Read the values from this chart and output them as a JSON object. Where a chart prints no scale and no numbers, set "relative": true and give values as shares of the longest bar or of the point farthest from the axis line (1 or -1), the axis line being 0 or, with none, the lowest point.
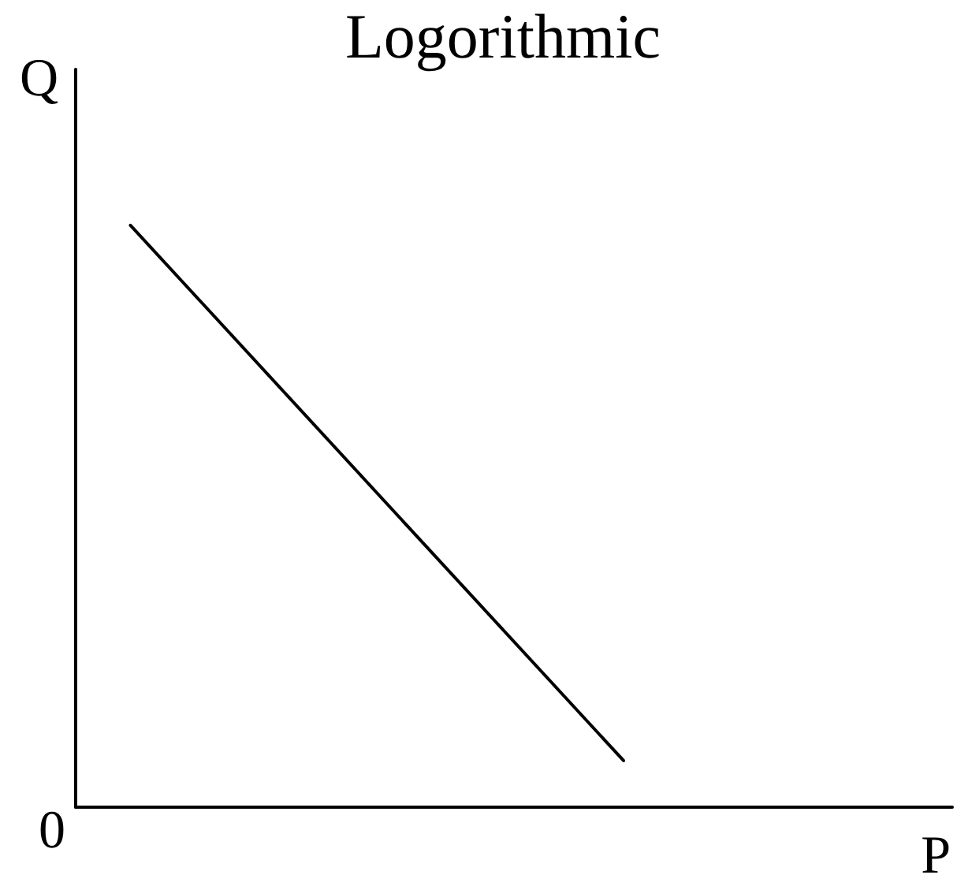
{
  "chart_data": {
    "type": "line",
    "title": "Logorithmic",
    "xlabel": "P",
    "ylabel": "Q",
    "annotations": [
      "0"
    ],
    "relative": true,
    "categories": [
      null,
      null,
      null,
      null,
      null,
      null,
      null,
      null,
      null,
      null,
      null,
      null,
      null,
      null,
      null,
      null,
      null
    ],
    "series": [
      {
        "color": "#000000",
        "values": [
          null,
          1,
          null,
          null,
          null,
          null,
          null,
          null,
          null,
          null,
          0.08,
          null,
          null,
          null,
          null,
          null,
          null
        ]
      }
    ],
    "marker": "none",
    "line_style": "solid"
  }
}
